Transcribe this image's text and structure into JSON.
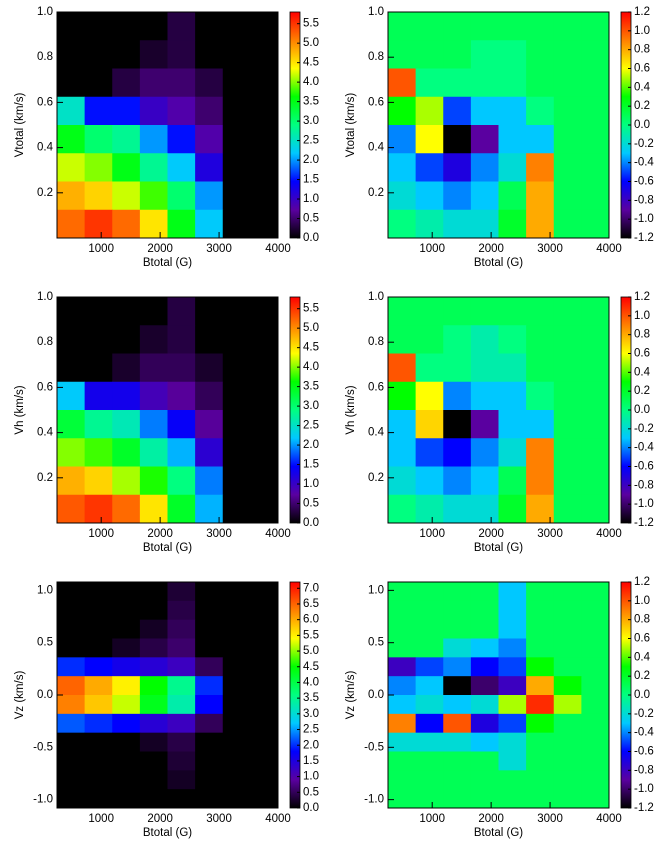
{
  "chart_data": [
    {
      "type": "heatmap",
      "xlabel": "Btotal (G)",
      "ylabel": "Vtotal (km/s)",
      "xlim": [
        250,
        4000
      ],
      "xticks": [
        1000,
        2000,
        3000,
        4000
      ],
      "ylim": [
        0,
        1
      ],
      "yticks": [
        {
          "value": 1,
          "label": "1.0"
        },
        0.8,
        0.6,
        0.4,
        0.2
      ],
      "clim": [
        0,
        5.8
      ],
      "cticks": [
        {
          "value": 0,
          "label": "0.0"
        },
        0.5,
        {
          "value": 1,
          "label": "1.0"
        },
        1.5,
        {
          "value": 2,
          "label": "2.0"
        },
        2.5,
        {
          "value": 3,
          "label": "3.0"
        },
        3.5,
        {
          "value": 4,
          "label": "4.0"
        },
        4.5,
        {
          "value": 5,
          "label": "5.0"
        },
        5.5
      ],
      "colormap": [
        "#000000",
        "#5a00a0",
        "#0000ff",
        "#00c8ff",
        "#00ff80",
        "#00ff00",
        "#ffff00",
        "#ff8000",
        "#ff0000"
      ],
      "z": [
        [
          0,
          0,
          0,
          0,
          0.3,
          0,
          0,
          0
        ],
        [
          0,
          0,
          0,
          0.2,
          0.3,
          0,
          0,
          0
        ],
        [
          0,
          0,
          0.3,
          0.5,
          0.5,
          0.3,
          0,
          0
        ],
        [
          2.5,
          1.5,
          1.5,
          1.0,
          0.8,
          0.5,
          0,
          0
        ],
        [
          3.5,
          3.0,
          2.8,
          2.0,
          1.5,
          0.8,
          0,
          0
        ],
        [
          4.2,
          4.0,
          3.5,
          2.8,
          2.2,
          1.2,
          0,
          0
        ],
        [
          4.8,
          4.6,
          4.2,
          3.8,
          3.0,
          2.0,
          0,
          0
        ],
        [
          5.2,
          5.5,
          5.2,
          4.5,
          3.5,
          2.2,
          0,
          0
        ]
      ]
    },
    {
      "type": "heatmap",
      "xlabel": "Btotal (G)",
      "ylabel": "Vtotal (km/s)",
      "xlim": [
        250,
        4000
      ],
      "xticks": [
        1000,
        2000,
        3000,
        4000
      ],
      "ylim": [
        0,
        1
      ],
      "yticks": [
        {
          "value": 1,
          "label": "1.0"
        },
        0.8,
        0.6,
        0.4,
        0.2
      ],
      "clim": [
        -1.2,
        1.2
      ],
      "cticks": [
        -1.2,
        {
          "value": -1,
          "label": "-1.0"
        },
        -0.8,
        -0.6,
        -0.4,
        -0.2,
        {
          "value": 0,
          "label": "0.0"
        },
        0.2,
        0.4,
        0.6,
        0.8,
        {
          "value": 1,
          "label": "1.0"
        },
        1.2
      ],
      "colormap": [
        "#000000",
        "#5a00a0",
        "#0000ff",
        "#00c8ff",
        "#00ff80",
        "#00ff00",
        "#ffff00",
        "#ff8000",
        "#ff0000"
      ],
      "z": [
        [
          0.1,
          0.1,
          0.1,
          0.1,
          0.1,
          0.1,
          0.1,
          0.1
        ],
        [
          0.1,
          0.1,
          0.1,
          0,
          0,
          0.1,
          0.1,
          0.1
        ],
        [
          1.0,
          0,
          0,
          0,
          0,
          0.1,
          0.1,
          0.1
        ],
        [
          0.3,
          0.5,
          -0.5,
          -0.3,
          -0.3,
          0,
          0.1,
          0.1
        ],
        [
          -0.4,
          0.6,
          -1.2,
          -0.9,
          -0.3,
          -0.3,
          0.1,
          0.1
        ],
        [
          -0.3,
          -0.5,
          -0.7,
          -0.4,
          -0.2,
          0.9,
          0.1,
          0.1
        ],
        [
          -0.2,
          -0.3,
          -0.4,
          -0.3,
          0.1,
          0.8,
          0.1,
          0.1
        ],
        [
          0,
          -0.1,
          -0.2,
          -0.2,
          0.2,
          0.8,
          0.1,
          0.1
        ]
      ]
    },
    {
      "type": "heatmap",
      "xlabel": "Btotal (G)",
      "ylabel": "Vh (km/s)",
      "xlim": [
        250,
        4000
      ],
      "xticks": [
        1000,
        2000,
        3000,
        4000
      ],
      "ylim": [
        0,
        1
      ],
      "yticks": [
        {
          "value": 1,
          "label": "1.0"
        },
        0.8,
        0.6,
        0.4,
        0.2
      ],
      "clim": [
        0,
        5.8
      ],
      "cticks": [
        {
          "value": 0,
          "label": "0.0"
        },
        0.5,
        {
          "value": 1,
          "label": "1.0"
        },
        1.5,
        {
          "value": 2,
          "label": "2.0"
        },
        2.5,
        {
          "value": 3,
          "label": "3.0"
        },
        3.5,
        {
          "value": 4,
          "label": "4.0"
        },
        4.5,
        {
          "value": 5,
          "label": "5.0"
        },
        5.5
      ],
      "colormap": [
        "#000000",
        "#5a00a0",
        "#0000ff",
        "#00c8ff",
        "#00ff80",
        "#00ff00",
        "#ffff00",
        "#ff8000",
        "#ff0000"
      ],
      "z": [
        [
          0,
          0,
          0,
          0,
          0.3,
          0,
          0,
          0
        ],
        [
          0,
          0,
          0,
          0.2,
          0.3,
          0,
          0,
          0
        ],
        [
          0,
          0,
          0.2,
          0.4,
          0.4,
          0.2,
          0,
          0
        ],
        [
          2.2,
          1.3,
          1.3,
          0.9,
          0.7,
          0.4,
          0,
          0
        ],
        [
          3.3,
          2.8,
          2.6,
          1.9,
          1.4,
          0.7,
          0,
          0
        ],
        [
          4.0,
          3.8,
          3.4,
          2.7,
          2.1,
          1.1,
          0,
          0
        ],
        [
          4.8,
          4.6,
          4.1,
          3.7,
          2.9,
          1.9,
          0,
          0
        ],
        [
          5.3,
          5.5,
          5.2,
          4.5,
          3.4,
          2.1,
          0,
          0
        ]
      ]
    },
    {
      "type": "heatmap",
      "xlabel": "Btotal (G)",
      "ylabel": "Vh (km/s)",
      "xlim": [
        250,
        4000
      ],
      "xticks": [
        1000,
        2000,
        3000,
        4000
      ],
      "ylim": [
        0,
        1
      ],
      "yticks": [
        {
          "value": 1,
          "label": "1.0"
        },
        0.8,
        0.6,
        0.4,
        0.2
      ],
      "clim": [
        -1.2,
        1.2
      ],
      "cticks": [
        -1.2,
        {
          "value": -1,
          "label": "-1.0"
        },
        -0.8,
        -0.6,
        -0.4,
        -0.2,
        {
          "value": 0,
          "label": "0.0"
        },
        0.2,
        0.4,
        0.6,
        0.8,
        {
          "value": 1,
          "label": "1.0"
        },
        1.2
      ],
      "colormap": [
        "#000000",
        "#5a00a0",
        "#0000ff",
        "#00c8ff",
        "#00ff80",
        "#00ff00",
        "#ffff00",
        "#ff8000",
        "#ff0000"
      ],
      "z": [
        [
          0.1,
          0.1,
          0.1,
          0.1,
          0.1,
          0.1,
          0.1,
          0.1
        ],
        [
          0.1,
          0.1,
          0,
          -0.1,
          0,
          0.1,
          0.1,
          0.1
        ],
        [
          1.0,
          0,
          0,
          -0.1,
          -0.1,
          0.1,
          0.1,
          0.1
        ],
        [
          0.3,
          0.6,
          -0.4,
          -0.3,
          -0.3,
          0,
          0.1,
          0.1
        ],
        [
          -0.3,
          0.7,
          -1.2,
          -0.9,
          -0.3,
          -0.3,
          0.1,
          0.1
        ],
        [
          -0.3,
          -0.5,
          -0.6,
          -0.4,
          -0.2,
          0.9,
          0.1,
          0.1
        ],
        [
          -0.2,
          -0.3,
          -0.4,
          -0.3,
          0.1,
          0.9,
          0.1,
          0.1
        ],
        [
          0,
          -0.1,
          -0.2,
          -0.2,
          0.2,
          0.8,
          0.1,
          0.1
        ]
      ]
    },
    {
      "type": "heatmap",
      "xlabel": "Btotal (G)",
      "ylabel": "Vz (km/s)",
      "xlim": [
        250,
        4000
      ],
      "xticks": [
        1000,
        2000,
        3000,
        4000
      ],
      "ylim": [
        -1.08,
        1.08
      ],
      "yticks": [
        {
          "value": 1,
          "label": "1.0"
        },
        0.5,
        {
          "value": 0,
          "label": "0.0"
        },
        -0.5,
        {
          "value": -1,
          "label": "-1.0"
        }
      ],
      "clim": [
        0,
        7.2
      ],
      "cticks": [
        {
          "value": 0,
          "label": "0.0"
        },
        0.5,
        {
          "value": 1,
          "label": "1.0"
        },
        1.5,
        {
          "value": 2,
          "label": "2.0"
        },
        2.5,
        {
          "value": 3,
          "label": "3.0"
        },
        3.5,
        {
          "value": 4,
          "label": "4.0"
        },
        4.5,
        {
          "value": 5,
          "label": "5.0"
        },
        5.5,
        {
          "value": 6,
          "label": "6.0"
        },
        6.5,
        {
          "value": 7,
          "label": "7.0"
        }
      ],
      "colormap": [
        "#000000",
        "#5a00a0",
        "#0000ff",
        "#00c8ff",
        "#00ff80",
        "#00ff00",
        "#ffff00",
        "#ff8000",
        "#ff0000"
      ],
      "z": [
        [
          0,
          0,
          0,
          0,
          0.3,
          0,
          0,
          0
        ],
        [
          0,
          0,
          0,
          0,
          0.4,
          0,
          0,
          0
        ],
        [
          0,
          0,
          0,
          0.2,
          0.5,
          0,
          0,
          0
        ],
        [
          0,
          0,
          0.2,
          0.4,
          0.6,
          0,
          0,
          0
        ],
        [
          2.0,
          1.8,
          1.6,
          1.4,
          1.2,
          0.5,
          0,
          0
        ],
        [
          6.5,
          6.0,
          5.5,
          4.5,
          3.5,
          2.0,
          0,
          0
        ],
        [
          6.3,
          5.8,
          5.2,
          4.3,
          3.3,
          1.8,
          0,
          0
        ],
        [
          2.2,
          2.0,
          1.8,
          1.4,
          1.2,
          0.5,
          0,
          0
        ],
        [
          0,
          0,
          0,
          0.2,
          0.4,
          0,
          0,
          0
        ],
        [
          0,
          0,
          0,
          0,
          0.3,
          0,
          0,
          0
        ],
        [
          0,
          0,
          0,
          0,
          0.2,
          0,
          0,
          0
        ],
        [
          0,
          0,
          0,
          0,
          0,
          0,
          0,
          0
        ]
      ]
    },
    {
      "type": "heatmap",
      "xlabel": "Btotal (G)",
      "ylabel": "Vz (km/s)",
      "xlim": [
        250,
        4000
      ],
      "xticks": [
        1000,
        2000,
        3000,
        4000
      ],
      "ylim": [
        -1.08,
        1.08
      ],
      "yticks": [
        {
          "value": 1,
          "label": "1.0"
        },
        0.5,
        {
          "value": 0,
          "label": "0.0"
        },
        -0.5,
        {
          "value": -1,
          "label": "-1.0"
        }
      ],
      "clim": [
        -1.2,
        1.2
      ],
      "cticks": [
        -1.2,
        {
          "value": -1,
          "label": "-1.0"
        },
        -0.8,
        -0.6,
        -0.4,
        -0.2,
        {
          "value": 0,
          "label": "0.0"
        },
        0.2,
        0.4,
        0.6,
        0.8,
        {
          "value": 1,
          "label": "1.0"
        },
        1.2
      ],
      "colormap": [
        "#000000",
        "#5a00a0",
        "#0000ff",
        "#00c8ff",
        "#00ff80",
        "#00ff00",
        "#ffff00",
        "#ff8000",
        "#ff0000"
      ],
      "z": [
        [
          0.1,
          0.1,
          0.1,
          0.1,
          -0.3,
          0.1,
          0.1,
          0.1
        ],
        [
          0.1,
          0.1,
          0.1,
          0.1,
          -0.3,
          0.1,
          0.1,
          0.1
        ],
        [
          0.1,
          0.1,
          0.1,
          0.1,
          -0.3,
          0.1,
          0.1,
          0.1
        ],
        [
          0.1,
          0.1,
          -0.2,
          -0.3,
          -0.4,
          0.1,
          0.1,
          0.1
        ],
        [
          -0.8,
          -0.5,
          -0.4,
          -0.6,
          -0.5,
          0.3,
          0.1,
          0.1
        ],
        [
          -0.4,
          -0.3,
          -1.2,
          -1.0,
          -0.8,
          0.8,
          0.3,
          0.1
        ],
        [
          -0.3,
          -0.2,
          -0.3,
          -0.2,
          0.5,
          1.1,
          0.5,
          0.1
        ],
        [
          0.9,
          -0.6,
          1.0,
          -0.7,
          -0.5,
          0.3,
          0.1,
          0.1
        ],
        [
          -0.2,
          -0.2,
          -0.2,
          -0.3,
          -0.2,
          0.1,
          0.1,
          0.1
        ],
        [
          0.1,
          0.1,
          0.1,
          0.1,
          -0.2,
          0.1,
          0.1,
          0.1
        ],
        [
          0.1,
          0.1,
          0.1,
          0.1,
          0.1,
          0.1,
          0.1,
          0.1
        ],
        [
          0.1,
          0.1,
          0.1,
          0.1,
          0.1,
          0.1,
          0.1,
          0.1
        ]
      ]
    }
  ]
}
